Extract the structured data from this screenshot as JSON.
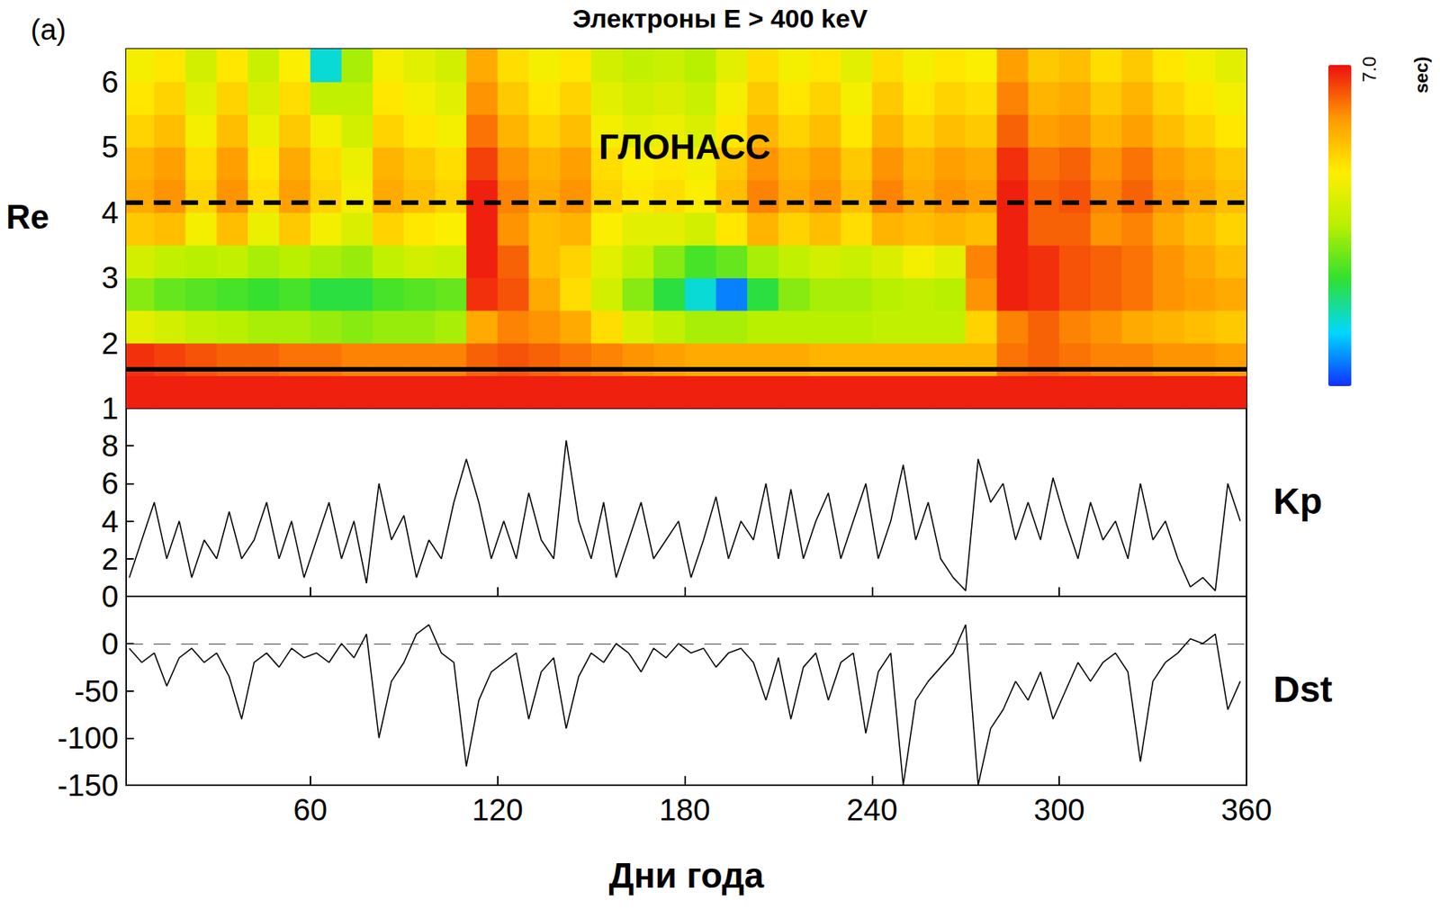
{
  "chart_data": [
    {
      "type": "heatmap",
      "title": "Электроны E > 400 keV",
      "panel_label": "(a)",
      "y_label": "Re",
      "xlim": [
        1,
        360
      ],
      "xticks": [
        60,
        120,
        180,
        240,
        300,
        360
      ],
      "ylim": [
        1,
        6.5
      ],
      "yticks": [
        1,
        2,
        3,
        4,
        5,
        6
      ],
      "tick_labels": "y",
      "x_edges": [
        1,
        10,
        20,
        30,
        40,
        50,
        60,
        70,
        80,
        90,
        100,
        110,
        120,
        130,
        140,
        150,
        160,
        170,
        180,
        190,
        200,
        210,
        220,
        230,
        240,
        250,
        260,
        270,
        280,
        290,
        300,
        310,
        320,
        330,
        340,
        350,
        360
      ],
      "y_edges": [
        1,
        1.5,
        2,
        2.5,
        3,
        3.5,
        4,
        4.5,
        5,
        5.5,
        6,
        6.5
      ],
      "cells": [
        [
          6.9,
          6.9,
          6.9,
          6.9,
          6.9,
          6.9,
          6.9,
          6.9,
          6.9,
          6.9,
          6.9,
          6.9,
          6.9,
          6.9,
          6.9,
          6.9,
          6.9,
          6.9,
          6.9,
          6.9,
          6.9,
          6.9,
          6.9,
          6.9,
          6.9,
          6.9,
          6.9,
          6.9,
          6.9,
          6.9,
          6.9,
          6.9,
          6.9,
          6.9,
          6.9,
          6.9
        ],
        [
          6.8,
          6.7,
          6.6,
          6.5,
          6.5,
          6.4,
          6.4,
          6.3,
          6.3,
          6.3,
          6.3,
          6.5,
          6.6,
          6.5,
          6.4,
          6.3,
          6.2,
          6.1,
          6.0,
          6.0,
          6.0,
          6.0,
          5.9,
          5.9,
          5.9,
          5.9,
          5.9,
          5.9,
          6.4,
          6.5,
          6.4,
          6.3,
          6.3,
          6.2,
          6.2,
          6.1
        ],
        [
          5.0,
          4.8,
          4.6,
          4.5,
          4.4,
          4.4,
          4.3,
          4.2,
          4.3,
          4.3,
          4.4,
          6.0,
          6.3,
          6.2,
          6.0,
          5.5,
          4.9,
          4.6,
          4.4,
          4.4,
          4.5,
          4.5,
          4.5,
          4.5,
          4.6,
          4.6,
          4.6,
          5.6,
          6.3,
          6.5,
          6.3,
          6.2,
          6.0,
          5.9,
          5.8,
          5.7
        ],
        [
          4.2,
          4.0,
          3.9,
          3.8,
          3.7,
          3.8,
          3.6,
          3.6,
          3.8,
          3.9,
          4.0,
          6.8,
          6.6,
          6.0,
          5.5,
          4.8,
          4.2,
          3.6,
          3.0,
          2.4,
          3.6,
          4.2,
          4.4,
          4.4,
          4.5,
          4.6,
          4.5,
          6.2,
          6.9,
          6.8,
          6.6,
          6.5,
          6.4,
          6.2,
          6.1,
          6.0
        ],
        [
          4.8,
          4.6,
          4.5,
          4.6,
          4.4,
          4.5,
          4.4,
          4.3,
          4.6,
          4.8,
          4.7,
          6.9,
          6.5,
          5.8,
          5.6,
          5.0,
          4.6,
          4.2,
          3.8,
          4.0,
          4.4,
          4.6,
          4.8,
          4.7,
          4.9,
          5.2,
          5.0,
          6.3,
          6.9,
          6.8,
          6.6,
          6.5,
          6.4,
          6.2,
          6.0,
          5.8
        ],
        [
          5.7,
          5.8,
          5.2,
          5.8,
          5.1,
          5.7,
          5.2,
          4.9,
          5.6,
          5.4,
          5.3,
          6.9,
          6.2,
          5.8,
          5.9,
          5.3,
          5.0,
          5.0,
          4.8,
          5.4,
          5.9,
          5.6,
          5.8,
          5.5,
          5.9,
          5.8,
          5.9,
          5.8,
          6.9,
          6.5,
          6.5,
          6.2,
          6.3,
          6.0,
          5.8,
          5.6
        ],
        [
          6.0,
          6.2,
          5.6,
          6.2,
          5.5,
          6.1,
          5.6,
          5.2,
          6.0,
          5.8,
          5.6,
          6.9,
          6.3,
          6.0,
          6.2,
          5.6,
          5.4,
          5.5,
          5.3,
          5.8,
          6.3,
          6.0,
          6.2,
          5.8,
          6.3,
          6.0,
          6.2,
          6.1,
          6.9,
          6.5,
          6.6,
          6.3,
          6.5,
          6.2,
          6.0,
          5.8
        ],
        [
          5.9,
          6.1,
          5.5,
          6.1,
          5.4,
          6.0,
          5.5,
          5.1,
          5.9,
          5.7,
          5.5,
          6.7,
          6.2,
          5.9,
          6.1,
          5.5,
          5.3,
          5.4,
          5.2,
          5.7,
          6.2,
          5.9,
          6.1,
          5.7,
          6.2,
          5.9,
          6.1,
          6.0,
          6.8,
          6.4,
          6.5,
          6.2,
          6.4,
          6.1,
          5.9,
          5.7
        ],
        [
          5.6,
          5.8,
          5.2,
          5.8,
          5.1,
          5.7,
          5.2,
          4.8,
          5.6,
          5.4,
          5.2,
          6.4,
          5.9,
          5.6,
          5.8,
          5.2,
          5.0,
          5.1,
          4.9,
          5.4,
          5.9,
          5.6,
          5.8,
          5.4,
          5.9,
          5.6,
          5.8,
          5.7,
          6.5,
          6.1,
          6.2,
          5.9,
          6.1,
          5.8,
          5.6,
          5.4
        ],
        [
          5.4,
          5.6,
          5.0,
          5.6,
          4.9,
          5.5,
          4.6,
          4.6,
          5.4,
          5.2,
          5.0,
          6.2,
          5.7,
          5.4,
          5.6,
          5.0,
          4.8,
          4.9,
          4.7,
          5.2,
          5.7,
          5.4,
          5.6,
          5.2,
          5.7,
          5.4,
          5.6,
          5.5,
          6.3,
          5.9,
          6.0,
          5.7,
          5.9,
          5.6,
          5.4,
          5.2
        ],
        [
          5.2,
          5.4,
          4.8,
          5.4,
          4.7,
          5.3,
          3.0,
          4.4,
          5.2,
          5.0,
          4.8,
          6.0,
          5.5,
          5.2,
          5.4,
          4.8,
          4.6,
          4.7,
          4.5,
          5.0,
          5.5,
          5.2,
          5.4,
          5.0,
          5.5,
          5.2,
          5.4,
          5.3,
          6.1,
          5.7,
          5.8,
          5.5,
          5.7,
          5.4,
          5.2,
          5.0
        ]
      ],
      "colorbar": {
        "range": [
          2,
          7
        ],
        "ticks": [
          {
            "value": 7,
            "label": "7.0"
          }
        ],
        "label": "sec)",
        "colors": [
          "#1030ff",
          "#00d8ff",
          "#30e030",
          "#b8f000",
          "#ffee00",
          "#ff9900",
          "#ee1010"
        ]
      },
      "hlines": [
        {
          "y": 1.6,
          "line_style": "solid"
        },
        {
          "y": 4.15,
          "line_style": "dashed"
        }
      ],
      "annotations": [
        {
          "text": "ГЛОНАСС",
          "x": 180,
          "y": 5.0
        }
      ]
    },
    {
      "type": "line",
      "y_label": "Kp",
      "color": "#000000",
      "xlim": [
        1,
        360
      ],
      "xticks": [
        60,
        120,
        180,
        240,
        300,
        360
      ],
      "ylim": [
        0,
        10
      ],
      "yticks": [
        0,
        2,
        4,
        6,
        8
      ],
      "tick_labels": "y",
      "x": [
        2,
        6,
        10,
        14,
        18,
        22,
        26,
        30,
        34,
        38,
        42,
        46,
        50,
        54,
        58,
        62,
        66,
        70,
        74,
        78,
        82,
        86,
        90,
        94,
        98,
        102,
        106,
        110,
        114,
        118,
        122,
        126,
        130,
        134,
        138,
        142,
        146,
        150,
        154,
        158,
        162,
        166,
        170,
        174,
        178,
        182,
        186,
        190,
        194,
        198,
        202,
        206,
        210,
        214,
        218,
        222,
        226,
        230,
        234,
        238,
        242,
        246,
        250,
        254,
        258,
        262,
        266,
        270,
        274,
        278,
        282,
        286,
        290,
        294,
        298,
        302,
        306,
        310,
        314,
        318,
        322,
        326,
        330,
        334,
        338,
        342,
        346,
        350,
        354,
        358
      ],
      "values": [
        1,
        3,
        5,
        2,
        4,
        1,
        3,
        2,
        4.5,
        2,
        3,
        5,
        2,
        4,
        1,
        3,
        5,
        2,
        4,
        0.7,
        6,
        3,
        4.3,
        1,
        3,
        2,
        5,
        7.3,
        5,
        2,
        4,
        2,
        5.5,
        3,
        2,
        8.3,
        4,
        2,
        5,
        1,
        3,
        5,
        2,
        3,
        4,
        1,
        3,
        5.3,
        2,
        4,
        3,
        6,
        2,
        5.7,
        2,
        4,
        5.5,
        2,
        4,
        6,
        2,
        4,
        7,
        3,
        5,
        2,
        1,
        0.3,
        7.3,
        5,
        6,
        3,
        5,
        3,
        6.3,
        4,
        2,
        5,
        3,
        4,
        2,
        6,
        3,
        4,
        2,
        0.5,
        1,
        0.3,
        6,
        4
      ]
    },
    {
      "type": "line",
      "y_label": "Dst",
      "x_label": "Дни года",
      "color": "#000000",
      "xlim": [
        1,
        360
      ],
      "xticks": [
        60,
        120,
        180,
        240,
        300,
        360
      ],
      "ylim": [
        -150,
        50
      ],
      "yticks": [
        -150,
        -100,
        -50,
        0
      ],
      "hlines": [
        {
          "y": 0,
          "line_style": "dashed"
        }
      ],
      "x": [
        2,
        6,
        10,
        14,
        18,
        22,
        26,
        30,
        34,
        38,
        42,
        46,
        50,
        54,
        58,
        62,
        66,
        70,
        74,
        78,
        82,
        86,
        90,
        94,
        98,
        102,
        106,
        110,
        114,
        118,
        122,
        126,
        130,
        134,
        138,
        142,
        146,
        150,
        154,
        158,
        162,
        166,
        170,
        174,
        178,
        182,
        186,
        190,
        194,
        198,
        202,
        206,
        210,
        214,
        218,
        222,
        226,
        230,
        234,
        238,
        242,
        246,
        250,
        254,
        258,
        262,
        266,
        270,
        274,
        278,
        282,
        286,
        290,
        294,
        298,
        302,
        306,
        310,
        314,
        318,
        322,
        326,
        330,
        334,
        338,
        342,
        346,
        350,
        354,
        358
      ],
      "values": [
        -5,
        -20,
        -10,
        -45,
        -15,
        -5,
        -20,
        -10,
        -35,
        -80,
        -20,
        -10,
        -25,
        -5,
        -15,
        -10,
        -20,
        0,
        -15,
        10,
        -100,
        -40,
        -20,
        10,
        20,
        -10,
        -20,
        -130,
        -60,
        -30,
        -20,
        -10,
        -80,
        -30,
        -15,
        -90,
        -35,
        -10,
        -20,
        0,
        -10,
        -30,
        -5,
        -15,
        0,
        -10,
        -5,
        -25,
        -10,
        -5,
        -20,
        -60,
        -15,
        -80,
        -25,
        -10,
        -60,
        -20,
        -10,
        -95,
        -30,
        -10,
        -150,
        -60,
        -40,
        -25,
        -10,
        20,
        -150,
        -90,
        -70,
        -40,
        -60,
        -30,
        -80,
        -50,
        -20,
        -40,
        -20,
        -10,
        -30,
        -125,
        -40,
        -20,
        -10,
        5,
        0,
        10,
        -70,
        -40
      ]
    }
  ]
}
